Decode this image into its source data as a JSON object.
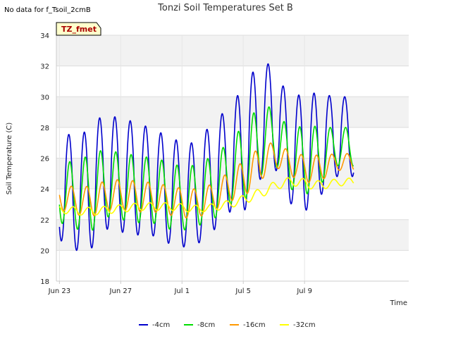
{
  "no_data_note": "No data for f_Tsoil_2cmB",
  "badge": "TZ_fmet",
  "chart_data": {
    "type": "line",
    "title": "Tonzi Soil Temperatures Set B",
    "xlabel": "Time",
    "ylabel": "Soil Temperature (C)",
    "ylim": [
      18,
      34
    ],
    "yticks": [
      18,
      20,
      22,
      24,
      26,
      28,
      30,
      32,
      34
    ],
    "xlim": [
      -0.2,
      22.8
    ],
    "xticks": [
      {
        "value": 0,
        "label": "Jun 23"
      },
      {
        "value": 4,
        "label": "Jun 27"
      },
      {
        "value": 8,
        "label": "Jul 1"
      },
      {
        "value": 12,
        "label": "Jul 5"
      },
      {
        "value": 16,
        "label": "Jul 9"
      }
    ],
    "grid": true,
    "legend_position": "bottom",
    "x_unit": "days since Jun 23",
    "series": [
      {
        "name": "-4cm",
        "color": "#0000cc",
        "daily": [
          {
            "day": 0,
            "min": 20.7,
            "max": 28.1
          },
          {
            "day": 1,
            "min": 20.0,
            "max": 27.2
          },
          {
            "day": 2,
            "min": 20.0,
            "max": 28.0
          },
          {
            "day": 3,
            "min": 21.4,
            "max": 29.0
          },
          {
            "day": 4,
            "min": 21.2,
            "max": 28.5
          },
          {
            "day": 5,
            "min": 21.0,
            "max": 28.4
          },
          {
            "day": 6,
            "min": 21.0,
            "max": 27.9
          },
          {
            "day": 7,
            "min": 20.5,
            "max": 27.5
          },
          {
            "day": 8,
            "min": 20.2,
            "max": 27.0
          },
          {
            "day": 9,
            "min": 20.4,
            "max": 27.0
          },
          {
            "day": 10,
            "min": 21.2,
            "max": 28.4
          },
          {
            "day": 11,
            "min": 22.5,
            "max": 29.2
          },
          {
            "day": 12,
            "min": 22.4,
            "max": 30.6
          },
          {
            "day": 13,
            "min": 24.5,
            "max": 32.2
          },
          {
            "day": 14,
            "min": 25.5,
            "max": 32.1
          },
          {
            "day": 15,
            "min": 23.1,
            "max": 29.8
          },
          {
            "day": 16,
            "min": 22.5,
            "max": 30.3
          },
          {
            "day": 17,
            "min": 23.5,
            "max": 30.2
          },
          {
            "day": 18,
            "min": 24.8,
            "max": 30.0
          }
        ]
      },
      {
        "name": "-8cm",
        "color": "#00dd00",
        "daily": [
          {
            "day": 0,
            "min": 21.8,
            "max": 25.9
          },
          {
            "day": 1,
            "min": 21.4,
            "max": 25.7
          },
          {
            "day": 2,
            "min": 21.2,
            "max": 26.3
          },
          {
            "day": 3,
            "min": 22.2,
            "max": 26.6
          },
          {
            "day": 4,
            "min": 22.0,
            "max": 26.3
          },
          {
            "day": 5,
            "min": 21.8,
            "max": 26.2
          },
          {
            "day": 6,
            "min": 21.8,
            "max": 26.0
          },
          {
            "day": 7,
            "min": 21.4,
            "max": 25.8
          },
          {
            "day": 8,
            "min": 21.3,
            "max": 25.4
          },
          {
            "day": 9,
            "min": 21.6,
            "max": 25.6
          },
          {
            "day": 10,
            "min": 22.0,
            "max": 26.2
          },
          {
            "day": 11,
            "min": 23.0,
            "max": 27.0
          },
          {
            "day": 12,
            "min": 23.2,
            "max": 28.2
          },
          {
            "day": 13,
            "min": 24.8,
            "max": 29.4
          },
          {
            "day": 14,
            "min": 25.6,
            "max": 29.3
          },
          {
            "day": 15,
            "min": 24.0,
            "max": 27.8
          },
          {
            "day": 16,
            "min": 23.6,
            "max": 28.2
          },
          {
            "day": 17,
            "min": 24.3,
            "max": 28.0
          },
          {
            "day": 18,
            "min": 25.5,
            "max": 28.0
          }
        ]
      },
      {
        "name": "-16cm",
        "color": "#ff9900",
        "daily": [
          {
            "day": 0,
            "min": 22.6,
            "max": 24.3
          },
          {
            "day": 1,
            "min": 22.3,
            "max": 24.1
          },
          {
            "day": 2,
            "min": 22.2,
            "max": 24.2
          },
          {
            "day": 3,
            "min": 22.6,
            "max": 24.6
          },
          {
            "day": 4,
            "min": 22.6,
            "max": 24.6
          },
          {
            "day": 5,
            "min": 22.5,
            "max": 24.5
          },
          {
            "day": 6,
            "min": 22.5,
            "max": 24.4
          },
          {
            "day": 7,
            "min": 22.3,
            "max": 24.2
          },
          {
            "day": 8,
            "min": 22.1,
            "max": 24.0
          },
          {
            "day": 9,
            "min": 22.2,
            "max": 24.0
          },
          {
            "day": 10,
            "min": 22.6,
            "max": 24.4
          },
          {
            "day": 11,
            "min": 23.2,
            "max": 25.2
          },
          {
            "day": 12,
            "min": 23.6,
            "max": 25.9
          },
          {
            "day": 13,
            "min": 24.6,
            "max": 26.8
          },
          {
            "day": 14,
            "min": 25.4,
            "max": 27.1
          },
          {
            "day": 15,
            "min": 24.8,
            "max": 26.3
          },
          {
            "day": 16,
            "min": 24.4,
            "max": 26.2
          },
          {
            "day": 17,
            "min": 24.6,
            "max": 26.2
          },
          {
            "day": 18,
            "min": 25.2,
            "max": 26.3
          }
        ]
      },
      {
        "name": "-32cm",
        "color": "#ffff00",
        "daily": [
          {
            "day": 0,
            "min": 22.4,
            "max": 22.9
          },
          {
            "day": 1,
            "min": 22.3,
            "max": 22.8
          },
          {
            "day": 2,
            "min": 22.3,
            "max": 22.8
          },
          {
            "day": 3,
            "min": 22.4,
            "max": 22.9
          },
          {
            "day": 4,
            "min": 22.5,
            "max": 23.0
          },
          {
            "day": 5,
            "min": 22.6,
            "max": 23.1
          },
          {
            "day": 6,
            "min": 22.6,
            "max": 23.1
          },
          {
            "day": 7,
            "min": 22.6,
            "max": 23.1
          },
          {
            "day": 8,
            "min": 22.5,
            "max": 23.0
          },
          {
            "day": 9,
            "min": 22.5,
            "max": 22.9
          },
          {
            "day": 10,
            "min": 22.6,
            "max": 23.1
          },
          {
            "day": 11,
            "min": 22.8,
            "max": 23.3
          },
          {
            "day": 12,
            "min": 23.1,
            "max": 23.7
          },
          {
            "day": 13,
            "min": 23.5,
            "max": 24.1
          },
          {
            "day": 14,
            "min": 24.0,
            "max": 24.6
          },
          {
            "day": 15,
            "min": 24.2,
            "max": 24.8
          },
          {
            "day": 16,
            "min": 24.0,
            "max": 24.6
          },
          {
            "day": 17,
            "min": 24.0,
            "max": 24.5
          },
          {
            "day": 18,
            "min": 24.2,
            "max": 24.7
          }
        ]
      }
    ]
  }
}
